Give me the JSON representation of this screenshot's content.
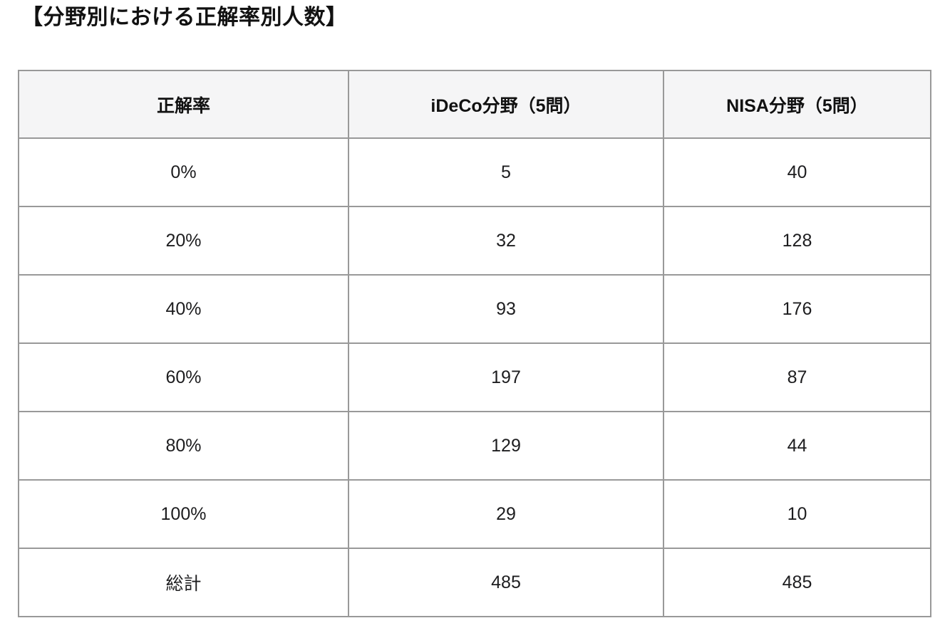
{
  "page": {
    "title": "【分野別における正解率別人数】"
  },
  "table": {
    "columns": [
      "正解率",
      "iDeCo分野（5問）",
      "NISA分野（5問）"
    ],
    "rows": [
      [
        "0%",
        "5",
        "40"
      ],
      [
        "20%",
        "32",
        "128"
      ],
      [
        "40%",
        "93",
        "176"
      ],
      [
        "60%",
        "197",
        "87"
      ],
      [
        "80%",
        "129",
        "44"
      ],
      [
        "100%",
        "29",
        "10"
      ],
      [
        "総計",
        "485",
        "485"
      ]
    ]
  },
  "colors": {
    "header_bg": "#f5f5f6",
    "row_bg": "#ffffff",
    "border": "#999999",
    "text": "#1d1d1f"
  },
  "chart_data": {
    "type": "table",
    "title": "【分野別における正解率別人数】",
    "columns": [
      "正解率",
      "iDeCo分野（5問）",
      "NISA分野（5問）"
    ],
    "categories": [
      "0%",
      "20%",
      "40%",
      "60%",
      "80%",
      "100%",
      "総計"
    ],
    "series": [
      {
        "name": "iDeCo分野（5問）",
        "values": [
          5,
          32,
          93,
          197,
          129,
          29,
          485
        ]
      },
      {
        "name": "NISA分野（5問）",
        "values": [
          40,
          128,
          176,
          87,
          44,
          10,
          485
        ]
      }
    ],
    "layout_hints": {
      "header_background": "#f5f5f6",
      "grid": "on",
      "alignment": "center"
    }
  }
}
